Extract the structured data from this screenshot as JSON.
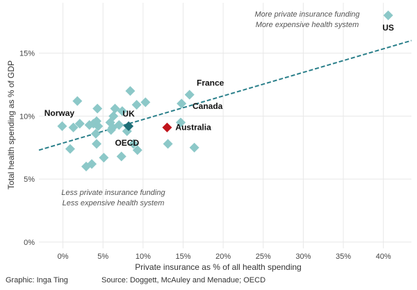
{
  "chart_data": {
    "type": "scatter",
    "xlabel": "Private insurance as % of all health spending",
    "ylabel": "Total health spending as % of GDP",
    "xlim": [
      -3,
      43.5
    ],
    "ylim": [
      -0.5,
      19
    ],
    "x_ticks": [
      0,
      5,
      10,
      15,
      20,
      25,
      30,
      35,
      40
    ],
    "x_tick_labels": [
      "0%",
      "5%",
      "10%",
      "15%",
      "20%",
      "25%",
      "30%",
      "35%",
      "40%"
    ],
    "y_ticks": [
      0,
      5,
      10,
      15
    ],
    "y_tick_labels": [
      "0%",
      "5%",
      "10%",
      "15%"
    ],
    "grid": true,
    "trendline": {
      "x": [
        -3,
        43.5
      ],
      "y": [
        7.3,
        16.0
      ],
      "color": "#2a7f8a",
      "style": "dashed"
    },
    "colors": {
      "others": "#8cc8c8",
      "uk": "#1f6e76",
      "australia": "#c0141c",
      "grid": "#e8e8e8"
    },
    "points": [
      {
        "x": 40.6,
        "y": 18.0,
        "label": "US"
      },
      {
        "x": 15.8,
        "y": 11.7,
        "label": "France"
      },
      {
        "x": 14.8,
        "y": 11.0,
        "label": "Canada"
      },
      {
        "x": 8.2,
        "y": 9.2,
        "label": "UK",
        "highlight": "uk"
      },
      {
        "x": 13.0,
        "y": 9.1,
        "label": "Australia",
        "highlight": "australia"
      },
      {
        "x": 8.0,
        "y": 8.8,
        "label": "OECD"
      },
      {
        "x": -0.1,
        "y": 9.2,
        "label": "Norway"
      },
      {
        "x": 8.4,
        "y": 12.0,
        "label": ""
      },
      {
        "x": 1.8,
        "y": 11.2,
        "label": ""
      },
      {
        "x": 10.3,
        "y": 11.1,
        "label": ""
      },
      {
        "x": 9.2,
        "y": 10.9,
        "label": ""
      },
      {
        "x": 4.3,
        "y": 10.6,
        "label": ""
      },
      {
        "x": 6.5,
        "y": 10.6,
        "label": ""
      },
      {
        "x": 7.4,
        "y": 10.4,
        "label": ""
      },
      {
        "x": 6.3,
        "y": 10.0,
        "label": ""
      },
      {
        "x": 2.1,
        "y": 9.4,
        "label": ""
      },
      {
        "x": 1.3,
        "y": 9.1,
        "label": ""
      },
      {
        "x": 3.3,
        "y": 9.3,
        "label": ""
      },
      {
        "x": 3.8,
        "y": 9.4,
        "label": ""
      },
      {
        "x": 4.2,
        "y": 9.6,
        "label": ""
      },
      {
        "x": 4.4,
        "y": 9.2,
        "label": ""
      },
      {
        "x": 5.9,
        "y": 9.5,
        "label": ""
      },
      {
        "x": 6.2,
        "y": 9.1,
        "label": ""
      },
      {
        "x": 7.0,
        "y": 9.3,
        "label": ""
      },
      {
        "x": 6.0,
        "y": 8.9,
        "label": ""
      },
      {
        "x": 4.1,
        "y": 8.6,
        "label": ""
      },
      {
        "x": 14.7,
        "y": 9.5,
        "label": ""
      },
      {
        "x": 4.2,
        "y": 7.8,
        "label": ""
      },
      {
        "x": 0.9,
        "y": 7.4,
        "label": ""
      },
      {
        "x": 8.8,
        "y": 7.8,
        "label": ""
      },
      {
        "x": 9.3,
        "y": 7.3,
        "label": ""
      },
      {
        "x": 13.1,
        "y": 7.8,
        "label": ""
      },
      {
        "x": 16.4,
        "y": 7.5,
        "label": ""
      },
      {
        "x": 5.1,
        "y": 6.7,
        "label": ""
      },
      {
        "x": 7.3,
        "y": 6.8,
        "label": ""
      },
      {
        "x": 3.6,
        "y": 6.2,
        "label": ""
      },
      {
        "x": 2.9,
        "y": 6.0,
        "label": ""
      }
    ],
    "annotations": [
      {
        "lines": [
          "More private insurance funding",
          "More expensive health system"
        ]
      },
      {
        "lines": [
          "Less private insurance funding",
          "Less expensive health system"
        ]
      }
    ]
  },
  "footer": {
    "credit": "Graphic: Inga Ting",
    "source": "Source: Doggett, McAuley and Menadue; OECD"
  }
}
